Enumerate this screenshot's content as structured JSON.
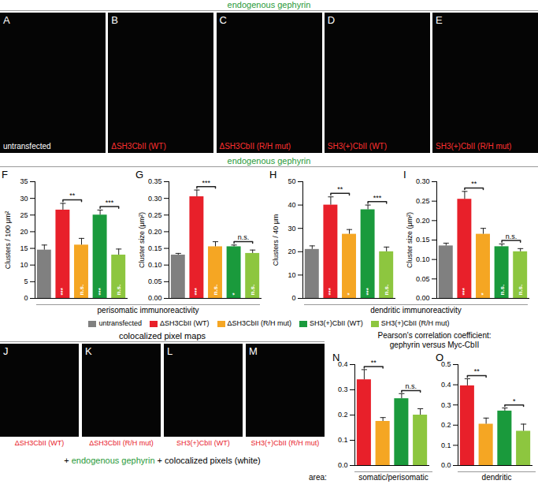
{
  "headers": {
    "top": "endogenous gephyrin",
    "middle": "endogenous gephyrin",
    "bottom": "colocalized pixel maps"
  },
  "images_top": [
    {
      "panel": "A",
      "caption": "untransfected"
    },
    {
      "panel": "B",
      "caption": "ΔSH3CbII (WT)"
    },
    {
      "panel": "C",
      "caption": "ΔSH3CbII (R/H mut)"
    },
    {
      "panel": "D",
      "caption": "SH3(+)CbII (WT)"
    },
    {
      "panel": "E",
      "caption": "SH3(+)CbII (R/H mut)"
    }
  ],
  "images_bottom": [
    {
      "panel": "J",
      "caption": "ΔSH3CbII (WT)"
    },
    {
      "panel": "K",
      "caption": "ΔSH3CbII (R/H mut)"
    },
    {
      "panel": "L",
      "caption": "SH3(+)CbII (WT)"
    },
    {
      "panel": "M",
      "caption": "SH3(+)CbII (R/H mut)"
    }
  ],
  "bottom_caption": {
    "prefix": "+",
    "green": "endogenous gephyrin",
    "suffix": "+ colocalized pixels (white)"
  },
  "group_labels": [
    "perisomatic immunoreactivity",
    "dendritic immunoreactivity"
  ],
  "key": [
    {
      "name": "untransfected",
      "color": "#808080"
    },
    {
      "name": "ΔSH3CbII (WT)",
      "color": "#e8202a"
    },
    {
      "name": "ΔSH3CbII (R/H mut)",
      "color": "#f5a623"
    },
    {
      "name": "SH3(+)CbII (WT)",
      "color": "#1a9a3c"
    },
    {
      "name": "SH3(+)CbII (R/H mut)",
      "color": "#8dc63f"
    }
  ],
  "pearson_title": [
    "Pearson's correlation coefficient:",
    "gephyrin versus Myc-CbII"
  ],
  "area_label": "area:",
  "chart_data": [
    {
      "type": "bar",
      "panel": "F",
      "y_label": "Clusters / 100 μm²",
      "tick_labels": "y",
      "categories": [
        null,
        null,
        null,
        null,
        null
      ],
      "colors": [
        "#808080",
        "#e8202a",
        "#f5a623",
        "#1a9a3c",
        "#8dc63f"
      ],
      "values": [
        14.5,
        26.5,
        16,
        25,
        13
      ],
      "errors": [
        1.5,
        2,
        2,
        1.5,
        1.8
      ],
      "inside_labels": [
        null,
        "***",
        "n.s.",
        "***",
        "n.s."
      ],
      "brackets": [
        {
          "from": 1,
          "to": 2,
          "label": "**"
        },
        {
          "from": 3,
          "to": 4,
          "label": "***"
        }
      ],
      "ylim": [
        0,
        35
      ],
      "yticks": [
        0,
        5,
        10,
        15,
        20,
        25,
        30,
        35
      ]
    },
    {
      "type": "bar",
      "panel": "G",
      "y_label": "Cluster size (μm²)",
      "tick_labels": "y",
      "categories": [
        null,
        null,
        null,
        null,
        null
      ],
      "colors": [
        "#808080",
        "#e8202a",
        "#f5a623",
        "#1a9a3c",
        "#8dc63f"
      ],
      "values": [
        0.13,
        0.305,
        0.155,
        0.155,
        0.135
      ],
      "errors": [
        0.005,
        0.02,
        0.015,
        0.005,
        0.01
      ],
      "inside_labels": [
        null,
        "***",
        "n.s.",
        "*",
        "n.s."
      ],
      "brackets": [
        {
          "from": 1,
          "to": 2,
          "label": "***"
        },
        {
          "from": 3,
          "to": 4,
          "label": "n.s."
        }
      ],
      "ylim": [
        0,
        0.35
      ],
      "yticks": [
        {
          "value": 0,
          "label": "0.00"
        },
        {
          "value": 0.05,
          "label": "0.05"
        },
        {
          "value": 0.1,
          "label": "0.10"
        },
        {
          "value": 0.15,
          "label": "0.15"
        },
        {
          "value": 0.2,
          "label": "0.20"
        },
        {
          "value": 0.25,
          "label": "0.25"
        },
        {
          "value": 0.3,
          "label": "0.30"
        },
        {
          "value": 0.35,
          "label": "0.35"
        }
      ]
    },
    {
      "type": "bar",
      "panel": "H",
      "y_label": "Clusters / 40 μm",
      "tick_labels": "y",
      "categories": [
        null,
        null,
        null,
        null,
        null
      ],
      "colors": [
        "#808080",
        "#e8202a",
        "#f5a623",
        "#1a9a3c",
        "#8dc63f"
      ],
      "values": [
        21,
        40,
        27.5,
        38,
        20
      ],
      "errors": [
        1.5,
        3.5,
        2,
        2,
        2
      ],
      "inside_labels": [
        null,
        "***",
        "*",
        "***",
        "n.s."
      ],
      "brackets": [
        {
          "from": 1,
          "to": 2,
          "label": "**"
        },
        {
          "from": 3,
          "to": 4,
          "label": "***"
        }
      ],
      "ylim": [
        0,
        50
      ],
      "yticks": [
        0,
        10,
        20,
        30,
        40,
        50
      ]
    },
    {
      "type": "bar",
      "panel": "I",
      "y_label": "Cluster size (μm²)",
      "tick_labels": "y",
      "categories": [
        null,
        null,
        null,
        null,
        null
      ],
      "colors": [
        "#808080",
        "#e8202a",
        "#f5a623",
        "#1a9a3c",
        "#8dc63f"
      ],
      "values": [
        0.135,
        0.255,
        0.165,
        0.133,
        0.12
      ],
      "errors": [
        0.007,
        0.02,
        0.015,
        0.007,
        0.008
      ],
      "inside_labels": [
        null,
        "***",
        "*",
        "n.s.",
        "n.s."
      ],
      "brackets": [
        {
          "from": 1,
          "to": 2,
          "label": "**"
        },
        {
          "from": 3,
          "to": 4,
          "label": "n.s."
        }
      ],
      "ylim": [
        0,
        0.3
      ],
      "yticks": [
        {
          "value": 0,
          "label": "0.00"
        },
        {
          "value": 0.05,
          "label": "0.05"
        },
        {
          "value": 0.1,
          "label": "0.10"
        },
        {
          "value": 0.15,
          "label": "0.15"
        },
        {
          "value": 0.2,
          "label": "0.20"
        },
        {
          "value": 0.25,
          "label": "0.25"
        },
        {
          "value": 0.3,
          "label": "0.30"
        }
      ]
    },
    {
      "type": "bar",
      "panel": "N",
      "x_label": "somatic/perisomatic",
      "tick_labels": "y",
      "categories": [
        null,
        null,
        null,
        null
      ],
      "colors": [
        "#e8202a",
        "#f5a623",
        "#1a9a3c",
        "#8dc63f"
      ],
      "values": [
        0.34,
        0.175,
        0.265,
        0.2
      ],
      "errors": [
        0.04,
        0.015,
        0.02,
        0.025
      ],
      "brackets": [
        {
          "from": 0,
          "to": 1,
          "label": "**"
        },
        {
          "from": 2,
          "to": 3,
          "label": "n.s."
        }
      ],
      "ylim": [
        0,
        0.4
      ],
      "yticks": [
        {
          "value": 0,
          "label": "0.0"
        },
        0.1,
        0.2,
        0.3,
        0.4
      ]
    },
    {
      "type": "bar",
      "panel": "O",
      "x_label": "dendritic",
      "tick_labels": "y",
      "categories": [
        null,
        null,
        null,
        null
      ],
      "colors": [
        "#e8202a",
        "#f5a623",
        "#1a9a3c",
        "#8dc63f"
      ],
      "values": [
        0.395,
        0.205,
        0.27,
        0.17
      ],
      "errors": [
        0.035,
        0.03,
        0.015,
        0.035
      ],
      "brackets": [
        {
          "from": 0,
          "to": 1,
          "label": "**"
        },
        {
          "from": 2,
          "to": 3,
          "label": "*"
        }
      ],
      "ylim": [
        0,
        0.5
      ],
      "yticks": [
        {
          "value": 0,
          "label": "0.0"
        },
        0.1,
        0.2,
        0.3,
        0.4,
        0.5
      ]
    }
  ]
}
